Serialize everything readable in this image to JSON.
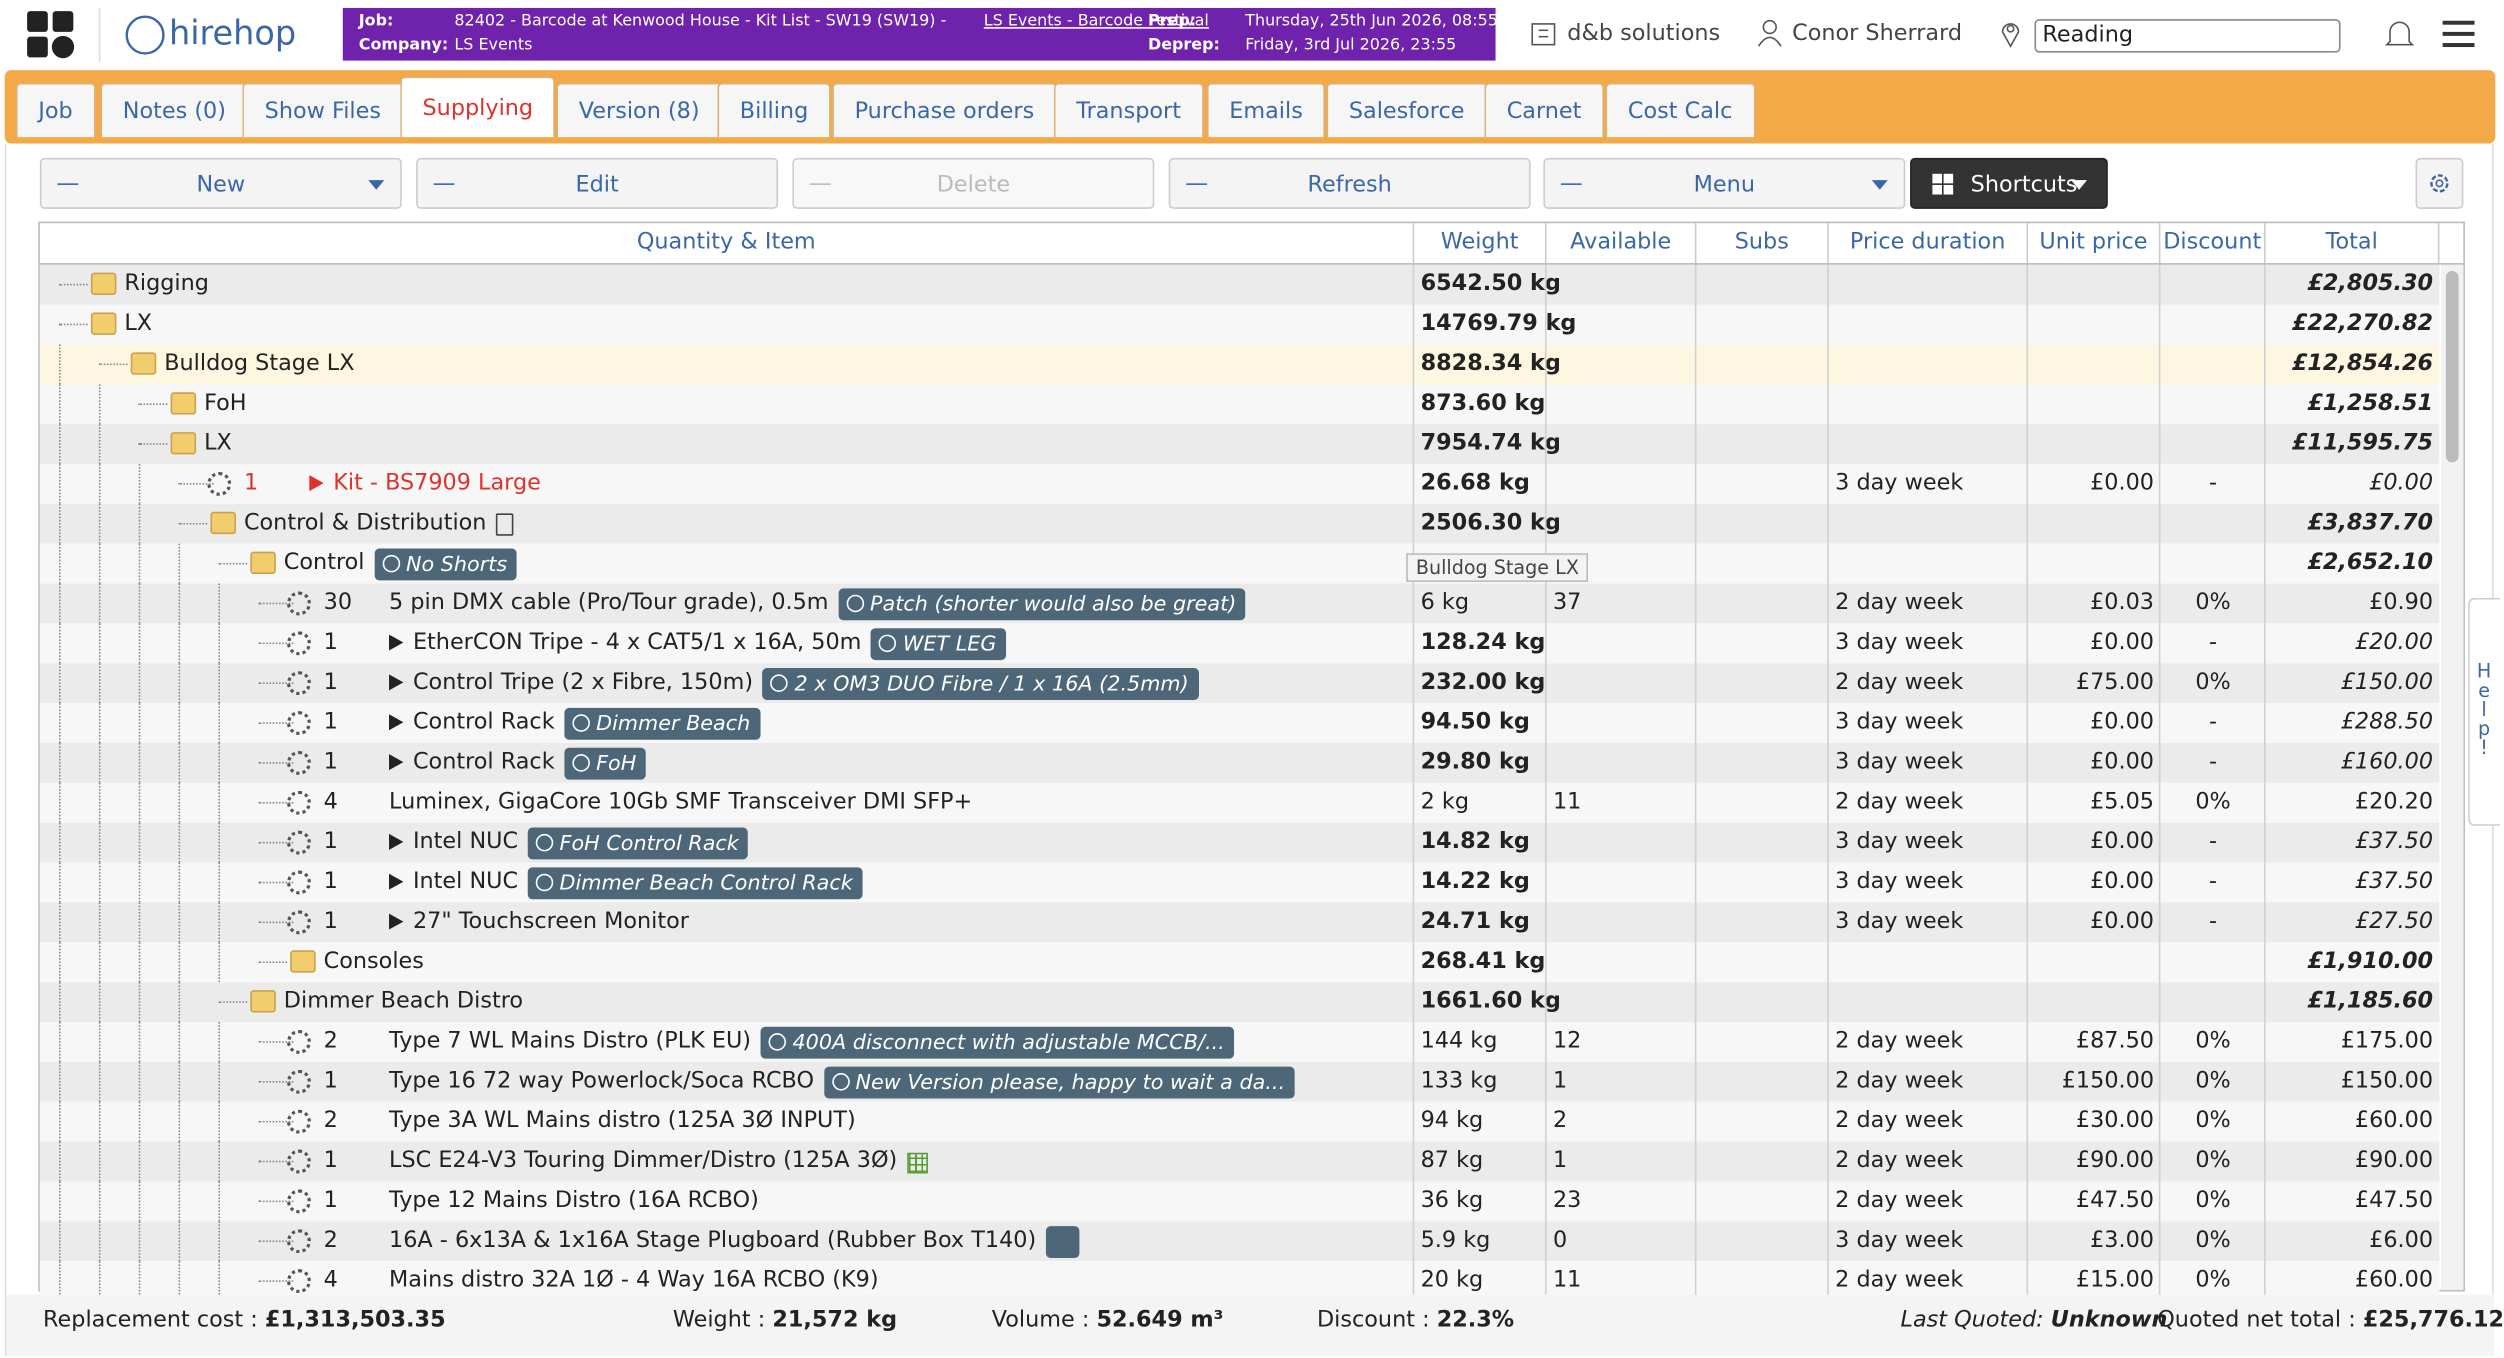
{
  "header": {
    "logo": "hirehop",
    "job_label": "Job:",
    "job": "82402 - Barcode at Kenwood House - Kit List - SW19 (SW19) -",
    "job_link": "LS Events - Barcode Festival",
    "company_label": "Company:",
    "company": "LS Events",
    "prep_label": "Prep:",
    "prep": "Thursday, 25th Jun 2026, 08:55",
    "deprep_label": "Deprep:",
    "deprep": "Friday, 3rd Jul 2026, 23:55",
    "org": "d&b solutions",
    "user": "Conor Sherrard",
    "depot": "Reading"
  },
  "tabs": [
    "Job",
    "Notes (0)",
    "Show Files",
    "Supplying",
    "Version (8)",
    "Billing",
    "Purchase orders",
    "Transport",
    "Emails",
    "Salesforce",
    "Carnet",
    "Cost Calc"
  ],
  "active_tab": 3,
  "toolbar": [
    "New",
    "Edit",
    "Delete",
    "Refresh",
    "Menu",
    "Shortcuts"
  ],
  "table": {
    "columns": [
      "Quantity & Item",
      "Weight",
      "Available",
      "Subs",
      "Price duration",
      "Unit price",
      "Discount",
      "Total"
    ],
    "rows": [
      {
        "kind": "folder",
        "level": 0,
        "name": "Rigging",
        "weight": "6542.50 kg",
        "total": "£2,805.30"
      },
      {
        "kind": "folder",
        "level": 0,
        "name": "LX",
        "weight": "14769.79 kg",
        "total": "£22,270.82"
      },
      {
        "kind": "folder",
        "level": 1,
        "name": "Bulldog Stage LX",
        "weight": "8828.34 kg",
        "total": "£12,854.26",
        "highlight": true
      },
      {
        "kind": "folder",
        "level": 2,
        "name": "FoH",
        "weight": "873.60 kg",
        "total": "£1,258.51"
      },
      {
        "kind": "folder",
        "level": 2,
        "name": "LX",
        "weight": "7954.74 kg",
        "total": "£11,595.75"
      },
      {
        "kind": "item",
        "level": 3,
        "qty": "1",
        "name": "Kit - BS7909 Large",
        "arrow": true,
        "red": true,
        "weight": "26.68 kg",
        "price_duration": "3 day week",
        "unit_price": "£0.00",
        "discount": "-",
        "total": "£0.00"
      },
      {
        "kind": "folder",
        "level": 3,
        "name": "Control & Distribution",
        "doc": true,
        "weight": "2506.30 kg",
        "total": "£3,837.70"
      },
      {
        "kind": "folder",
        "level": 4,
        "name": "Control",
        "note": "No Shorts",
        "total": "£2,652.10"
      },
      {
        "kind": "item",
        "level": 5,
        "qty": "30",
        "name": "5 pin DMX cable (Pro/Tour grade), 0.5m",
        "note": "Patch (shorter would also be great)",
        "weight": "6 kg",
        "available": "37",
        "price_duration": "2 day week",
        "unit_price": "£0.03",
        "discount": "0%",
        "total": "£0.90"
      },
      {
        "kind": "item",
        "level": 5,
        "qty": "1",
        "name": "EtherCON Tripe - 4 x CAT5/1 x 16A, 50m",
        "arrow": true,
        "note": "WET LEG",
        "weight": "128.24 kg",
        "price_duration": "3 day week",
        "unit_price": "£0.00",
        "discount": "-",
        "total": "£20.00"
      },
      {
        "kind": "item",
        "level": 5,
        "qty": "1",
        "name": "Control Tripe (2 x Fibre, 150m)",
        "arrow": true,
        "note": "2 x OM3 DUO Fibre / 1 x 16A (2.5mm)",
        "weight": "232.00 kg",
        "price_duration": "2 day week",
        "unit_price": "£75.00",
        "discount": "0%",
        "total": "£150.00"
      },
      {
        "kind": "item",
        "level": 5,
        "qty": "1",
        "name": "Control Rack",
        "arrow": true,
        "note": "Dimmer Beach",
        "weight": "94.50 kg",
        "price_duration": "3 day week",
        "unit_price": "£0.00",
        "discount": "-",
        "total": "£288.50"
      },
      {
        "kind": "item",
        "level": 5,
        "qty": "1",
        "name": "Control Rack",
        "arrow": true,
        "note": "FoH",
        "weight": "29.80 kg",
        "price_duration": "3 day week",
        "unit_price": "£0.00",
        "discount": "-",
        "total": "£160.00"
      },
      {
        "kind": "item",
        "level": 5,
        "qty": "4",
        "name": "Luminex, GigaCore 10Gb SMF Transceiver DMI SFP+",
        "weight": "2 kg",
        "available": "11",
        "price_duration": "2 day week",
        "unit_price": "£5.05",
        "discount": "0%",
        "total": "£20.20"
      },
      {
        "kind": "item",
        "level": 5,
        "qty": "1",
        "name": "Intel NUC",
        "arrow": true,
        "note": "FoH Control Rack",
        "weight": "14.82 kg",
        "price_duration": "3 day week",
        "unit_price": "£0.00",
        "discount": "-",
        "total": "£37.50"
      },
      {
        "kind": "item",
        "level": 5,
        "qty": "1",
        "name": "Intel NUC",
        "arrow": true,
        "note": "Dimmer Beach Control Rack",
        "weight": "14.22 kg",
        "price_duration": "3 day week",
        "unit_price": "£0.00",
        "discount": "-",
        "total": "£37.50"
      },
      {
        "kind": "item",
        "level": 5,
        "qty": "1",
        "name": "27\" Touchscreen Monitor",
        "arrow": true,
        "weight": "24.71 kg",
        "price_duration": "3 day week",
        "unit_price": "£0.00",
        "discount": "-",
        "total": "£27.50"
      },
      {
        "kind": "folder",
        "level": 5,
        "name": "Consoles",
        "weight": "268.41 kg",
        "total": "£1,910.00"
      },
      {
        "kind": "folder",
        "level": 4,
        "name": "Dimmer Beach Distro",
        "weight": "1661.60 kg",
        "total": "£1,185.60"
      },
      {
        "kind": "item",
        "level": 5,
        "qty": "2",
        "name": "Type 7 WL Mains Distro (PLK EU)",
        "note": "400A disconnect with adjustable MCCB/...",
        "weight": "144 kg",
        "available": "12",
        "price_duration": "2 day week",
        "unit_price": "£87.50",
        "discount": "0%",
        "total": "£175.00"
      },
      {
        "kind": "item",
        "level": 5,
        "qty": "1",
        "name": "Type 16 72 way Powerlock/Soca RCBO",
        "note": "New Version please, happy to wait a da...",
        "weight": "133 kg",
        "available": "1",
        "price_duration": "2 day week",
        "unit_price": "£150.00",
        "discount": "0%",
        "total": "£150.00"
      },
      {
        "kind": "item",
        "level": 5,
        "qty": "2",
        "name": "Type 3A  WL Mains distro (125A 3Ø INPUT)",
        "weight": "94 kg",
        "available": "2",
        "price_duration": "2 day week",
        "unit_price": "£30.00",
        "discount": "0%",
        "total": "£60.00"
      },
      {
        "kind": "item",
        "level": 5,
        "qty": "1",
        "name": "LSC E24-V3 Touring Dimmer/Distro (125A 3Ø)",
        "grid_icon": true,
        "weight": "87 kg",
        "available": "1",
        "price_duration": "2 day week",
        "unit_price": "£90.00",
        "discount": "0%",
        "total": "£90.00"
      },
      {
        "kind": "item",
        "level": 5,
        "qty": "1",
        "name": "Type 12 Mains Distro (16A RCBO)",
        "weight": "36 kg",
        "available": "23",
        "price_duration": "2 day week",
        "unit_price": "£47.50",
        "discount": "0%",
        "total": "£47.50"
      },
      {
        "kind": "item",
        "level": 5,
        "qty": "2",
        "name": "16A - 6x13A & 1x16A Stage Plugboard (Rubber Box T140)",
        "hidden_icon": true,
        "weight": "5.9 kg",
        "available": "0",
        "price_duration": "3 day week",
        "unit_price": "£3.00",
        "discount": "0%",
        "total": "£6.00"
      },
      {
        "kind": "item",
        "level": 5,
        "qty": "4",
        "name": "Mains distro 32A 1Ø - 4 Way 16A RCBO (K9)",
        "weight": "20 kg",
        "available": "11",
        "price_duration": "2 day week",
        "unit_price": "£15.00",
        "discount": "0%",
        "total": "£60.00"
      }
    ]
  },
  "tooltip": "Bulldog Stage LX",
  "help": "Help!",
  "footer": {
    "replacement_label": "Replacement cost :",
    "replacement": "£1,313,503.35",
    "weight_label": "Weight :",
    "weight": "21,572 kg",
    "volume_label": "Volume :",
    "volume": "52.649 m³",
    "discount_label": "Discount :",
    "discount": "22.3%",
    "quoted_label": "Last Quoted:",
    "quoted": "Unknown",
    "net_label": "Quoted net total :",
    "net": "£25,776.12"
  }
}
